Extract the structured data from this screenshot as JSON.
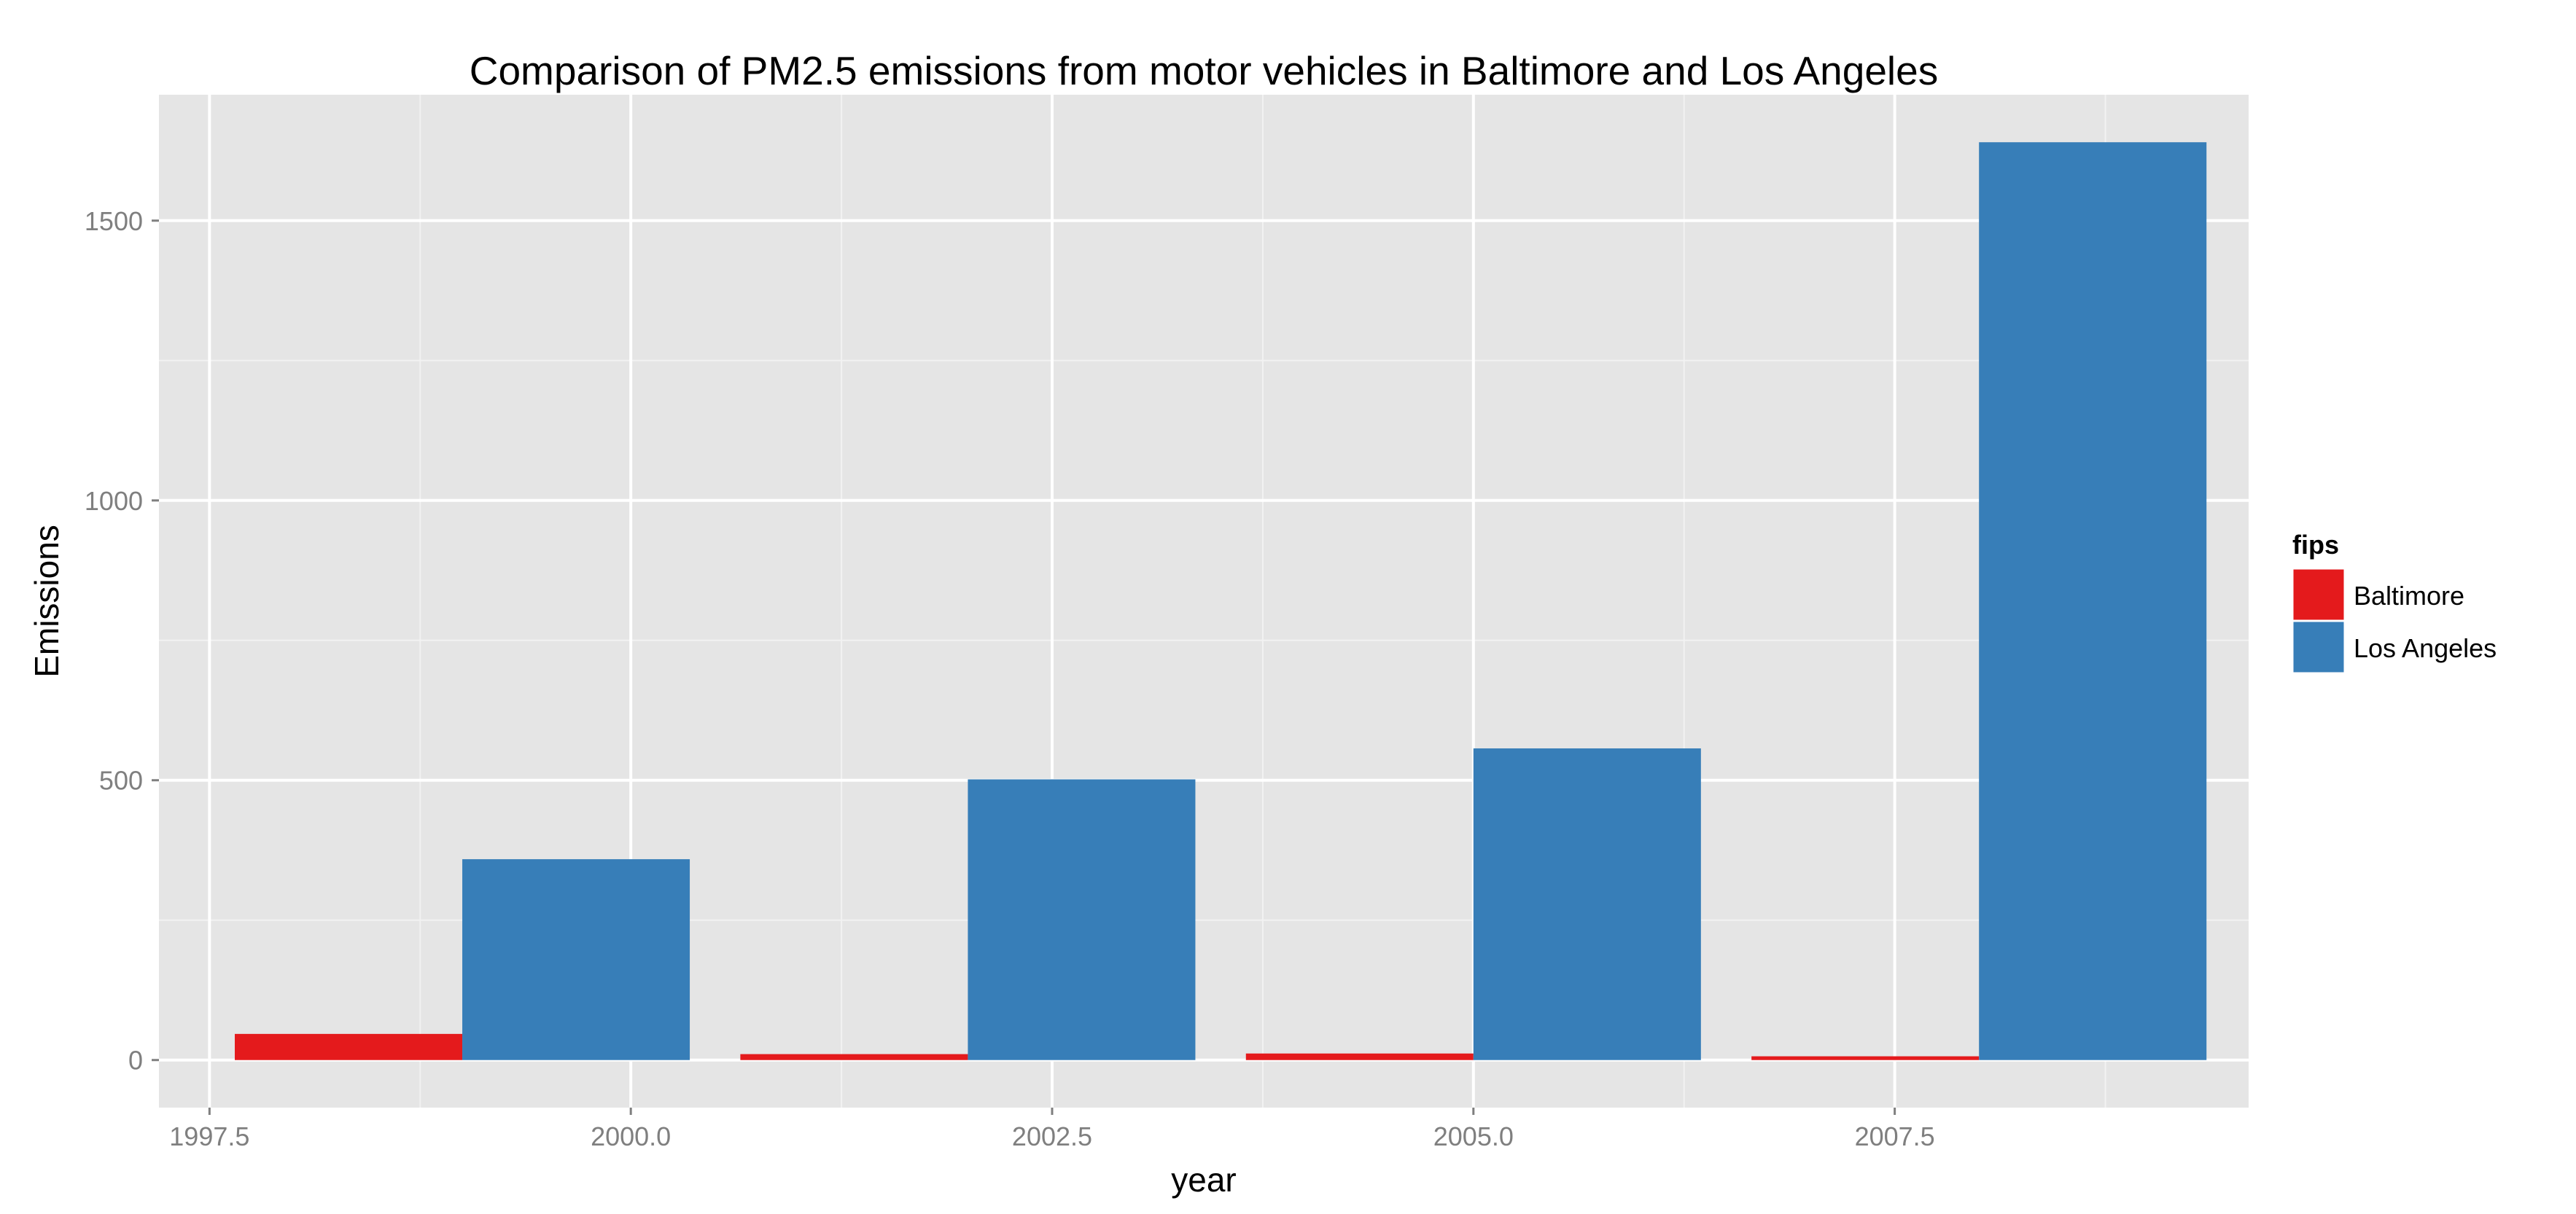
{
  "chart_data": {
    "type": "bar",
    "title": "Comparison of PM2.5 emissions from motor vehicles in Baltimore and Los Angeles",
    "xlabel": "year",
    "ylabel": "Emissions",
    "xlim": [
      1997.2,
      2009.6
    ],
    "ylim": [
      -85,
      1725
    ],
    "x_ticks": [
      1997.5,
      2000.0,
      2002.5,
      2005.0,
      2007.5
    ],
    "x_tick_labels": [
      "1997.5",
      "2000.0",
      "2002.5",
      "2005.0",
      "2007.5"
    ],
    "y_ticks": [
      0,
      500,
      1000,
      1500
    ],
    "y_tick_labels": [
      "0",
      "500",
      "1000",
      "1500"
    ],
    "x": [
      1999,
      2002,
      2005,
      2008
    ],
    "bar_span": 2.7,
    "grid": true,
    "legend": {
      "title": "fips",
      "placement": "right"
    },
    "series": [
      {
        "name": "Baltimore",
        "color": "#E41A1C",
        "values": [
          46.7,
          10.6,
          11.7,
          6.7
        ]
      },
      {
        "name": "Los Angeles",
        "color": "#377EB8",
        "values": [
          358.9,
          501.6,
          556.9,
          1640.1
        ]
      }
    ]
  }
}
